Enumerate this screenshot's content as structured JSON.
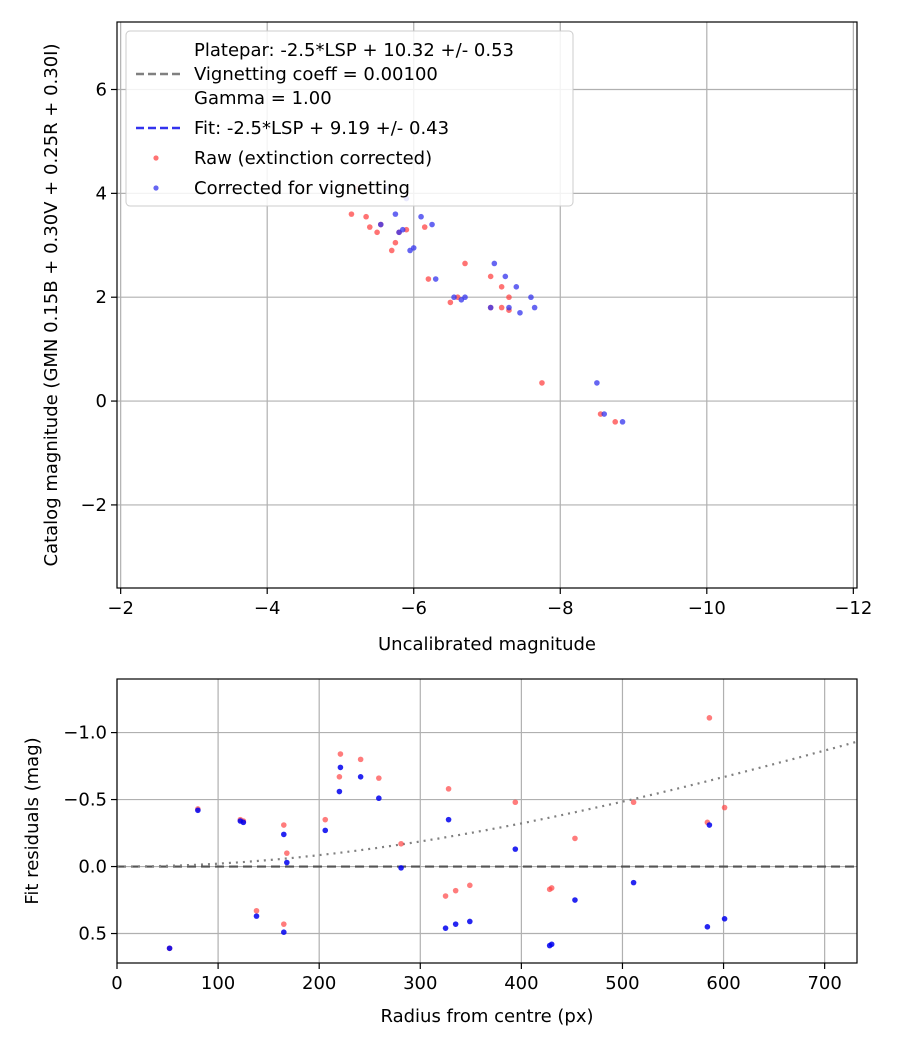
{
  "chart_data": [
    {
      "type": "scatter",
      "xlabel": "Uncalibrated magnitude",
      "ylabel": "Catalog magnitude (GMN 0.15B + 0.30V + 0.25R + 0.30I)",
      "xlim": [
        -1.95,
        -12.05
      ],
      "ylim": [
        7.3,
        -3.6
      ],
      "xticks": [
        -2,
        -4,
        -6,
        -8,
        -10,
        -12
      ],
      "yticks": [
        -2,
        0,
        2,
        4,
        6
      ],
      "xtick_labels": [
        "−2",
        "−4",
        "−6",
        "−8",
        "−10",
        "−12"
      ],
      "ytick_labels": [
        "−2",
        "0",
        "2",
        "4",
        "6"
      ],
      "grid": true,
      "legend_position": "top-left",
      "legend": {
        "platepar_line1": "Platepar: -2.5*LSP + 10.32 +/- 0.53",
        "platepar_line2": "Vignetting coeff = 0.00100",
        "platepar_line3": "Gamma = 1.00",
        "fit": "Fit: -2.5*LSP + 9.19 +/- 0.43",
        "raw": "Raw (extinction corrected)",
        "corrected": "Corrected for vignetting"
      },
      "lines": [
        {
          "name": "platepar",
          "slope": -1,
          "intercept": 10.32,
          "style": "dashed",
          "color": "#808080"
        },
        {
          "name": "fit",
          "slope": -1,
          "intercept": 9.19,
          "style": "dashed",
          "color": "#3333ee"
        }
      ],
      "series": [
        {
          "name": "Raw (extinction corrected)",
          "color": "#ff4444",
          "points": [
            [
              -5.15,
              3.6
            ],
            [
              -5.25,
              4.1
            ],
            [
              -5.35,
              3.55
            ],
            [
              -5.4,
              3.35
            ],
            [
              -5.5,
              3.25
            ],
            [
              -5.55,
              3.4
            ],
            [
              -5.7,
              2.9
            ],
            [
              -5.75,
              3.05
            ],
            [
              -5.8,
              3.25
            ],
            [
              -5.9,
              3.3
            ],
            [
              -6.15,
              3.35
            ],
            [
              -6.2,
              2.35
            ],
            [
              -6.5,
              1.9
            ],
            [
              -6.6,
              2.0
            ],
            [
              -6.7,
              2.65
            ],
            [
              -7.05,
              2.4
            ],
            [
              -7.05,
              1.8
            ],
            [
              -7.2,
              2.2
            ],
            [
              -7.2,
              1.8
            ],
            [
              -7.3,
              2.0
            ],
            [
              -7.3,
              1.75
            ],
            [
              -7.75,
              0.35
            ],
            [
              -8.55,
              -0.25
            ],
            [
              -8.75,
              -0.4
            ]
          ]
        },
        {
          "name": "Corrected for vignetting",
          "color": "#3333ee",
          "points": [
            [
              -5.55,
              3.4
            ],
            [
              -5.65,
              4.1
            ],
            [
              -5.75,
              3.6
            ],
            [
              -5.8,
              3.25
            ],
            [
              -5.85,
              3.3
            ],
            [
              -5.9,
              3.9
            ],
            [
              -5.95,
              2.9
            ],
            [
              -6.0,
              2.95
            ],
            [
              -6.1,
              3.55
            ],
            [
              -6.25,
              3.4
            ],
            [
              -6.3,
              2.35
            ],
            [
              -6.55,
              2.0
            ],
            [
              -6.65,
              1.95
            ],
            [
              -6.7,
              2.0
            ],
            [
              -7.05,
              1.8
            ],
            [
              -7.1,
              2.65
            ],
            [
              -7.25,
              2.4
            ],
            [
              -7.3,
              1.8
            ],
            [
              -7.4,
              2.2
            ],
            [
              -7.45,
              1.7
            ],
            [
              -7.6,
              2.0
            ],
            [
              -7.65,
              1.8
            ],
            [
              -8.5,
              0.35
            ],
            [
              -8.6,
              -0.25
            ],
            [
              -8.85,
              -0.4
            ]
          ]
        }
      ]
    },
    {
      "type": "scatter",
      "xlabel": "Radius from centre (px)",
      "ylabel": "Fit residuals (mag)",
      "xlim": [
        0,
        732
      ],
      "ylim": [
        -1.4,
        0.72
      ],
      "xticks": [
        0,
        100,
        200,
        300,
        400,
        500,
        600,
        700
      ],
      "yticks": [
        0.5,
        0.0,
        -0.5,
        -1.0
      ],
      "xtick_labels": [
        "0",
        "100",
        "200",
        "300",
        "400",
        "500",
        "600",
        "700"
      ],
      "ytick_labels": [
        "0.5",
        "0.0",
        "−0.5",
        "−1.0"
      ],
      "grid": true,
      "zero_line": {
        "y": 0,
        "style": "dashed",
        "color": "#555555"
      },
      "vignetting_curve": {
        "coeff": 0.001,
        "style": "dotted",
        "color": "#808080"
      },
      "series": [
        {
          "name": "Raw",
          "color": "#ff4444",
          "points": [
            [
              52,
              0.61
            ],
            [
              80,
              -0.43
            ],
            [
              122,
              -0.35
            ],
            [
              125,
              -0.34
            ],
            [
              138,
              0.33
            ],
            [
              165,
              0.43
            ],
            [
              165,
              -0.31
            ],
            [
              168,
              -0.1
            ],
            [
              206,
              -0.35
            ],
            [
              220,
              -0.67
            ],
            [
              221,
              -0.84
            ],
            [
              241,
              -0.8
            ],
            [
              259,
              -0.66
            ],
            [
              281,
              -0.17
            ],
            [
              325,
              0.22
            ],
            [
              328,
              -0.58
            ],
            [
              335,
              0.18
            ],
            [
              349,
              0.14
            ],
            [
              394,
              -0.48
            ],
            [
              428,
              0.17
            ],
            [
              430,
              0.16
            ],
            [
              453,
              -0.21
            ],
            [
              511,
              -0.48
            ],
            [
              584,
              -0.33
            ],
            [
              586,
              -1.11
            ],
            [
              601,
              -0.44
            ]
          ]
        },
        {
          "name": "Corrected",
          "color": "#0000ee",
          "points": [
            [
              52,
              0.61
            ],
            [
              80,
              -0.42
            ],
            [
              122,
              -0.34
            ],
            [
              125,
              -0.33
            ],
            [
              138,
              0.37
            ],
            [
              165,
              0.49
            ],
            [
              165,
              -0.24
            ],
            [
              168,
              -0.03
            ],
            [
              206,
              -0.27
            ],
            [
              220,
              -0.56
            ],
            [
              221,
              -0.74
            ],
            [
              241,
              -0.67
            ],
            [
              259,
              -0.51
            ],
            [
              281,
              0.01
            ],
            [
              325,
              0.46
            ],
            [
              328,
              -0.35
            ],
            [
              335,
              0.43
            ],
            [
              349,
              0.41
            ],
            [
              394,
              -0.13
            ],
            [
              428,
              0.59
            ],
            [
              430,
              0.58
            ],
            [
              453,
              0.25
            ],
            [
              511,
              0.12
            ],
            [
              584,
              0.45
            ],
            [
              586,
              -0.31
            ],
            [
              601,
              0.39
            ]
          ]
        }
      ]
    }
  ]
}
